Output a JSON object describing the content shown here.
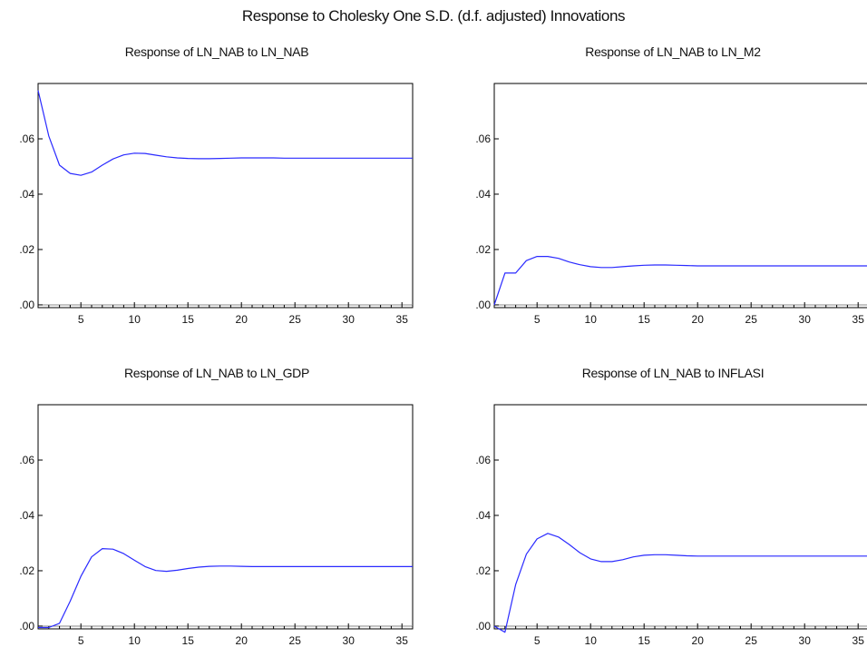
{
  "figure": {
    "title": "Response to Cholesky One S.D. (d.f. adjusted) Innovations"
  },
  "chart_data": [
    {
      "type": "line",
      "title": "Response of LN_NAB to LN_NAB",
      "xlabel": "",
      "ylabel": "",
      "xlim": [
        1,
        36
      ],
      "ylim": [
        -0.001,
        0.08
      ],
      "x_ticks": [
        5,
        10,
        15,
        20,
        25,
        30,
        35
      ],
      "x_tick_labels": [
        "5",
        "10",
        "15",
        "20",
        "25",
        "30",
        "35"
      ],
      "y_ticks": [
        0.0,
        0.02,
        0.04,
        0.06
      ],
      "y_tick_labels": [
        ".00",
        ".02",
        ".04",
        ".06"
      ],
      "grid": false,
      "series": [
        {
          "color": "#2a2aff",
          "x": [
            1,
            2,
            3,
            4,
            5,
            6,
            7,
            8,
            9,
            10,
            11,
            12,
            13,
            14,
            15,
            16,
            17,
            18,
            19,
            20,
            21,
            22,
            23,
            24,
            25,
            26,
            27,
            28,
            29,
            30,
            31,
            32,
            33,
            34,
            35,
            36
          ],
          "values": [
            0.0775,
            0.061,
            0.0505,
            0.0475,
            0.0468,
            0.048,
            0.0505,
            0.0527,
            0.0542,
            0.0548,
            0.0547,
            0.0541,
            0.0535,
            0.0531,
            0.0529,
            0.0528,
            0.0528,
            0.0529,
            0.053,
            0.0531,
            0.0531,
            0.0531,
            0.0531,
            0.053,
            0.053,
            0.053,
            0.053,
            0.053,
            0.053,
            0.053,
            0.053,
            0.053,
            0.053,
            0.053,
            0.053,
            0.053
          ]
        }
      ]
    },
    {
      "type": "line",
      "title": "Response of LN_NAB to LN_M2",
      "xlabel": "",
      "ylabel": "",
      "xlim": [
        1,
        36
      ],
      "ylim": [
        -0.001,
        0.08
      ],
      "x_ticks": [
        5,
        10,
        15,
        20,
        25,
        30,
        35
      ],
      "x_tick_labels": [
        "5",
        "10",
        "15",
        "20",
        "25",
        "30",
        "35"
      ],
      "y_ticks": [
        0.0,
        0.02,
        0.04,
        0.06
      ],
      "y_tick_labels": [
        ".00",
        ".02",
        ".04",
        ".06"
      ],
      "grid": false,
      "series": [
        {
          "color": "#2a2aff",
          "x": [
            1,
            2,
            3,
            4,
            5,
            6,
            7,
            8,
            9,
            10,
            11,
            12,
            13,
            14,
            15,
            16,
            17,
            18,
            19,
            20,
            21,
            22,
            23,
            24,
            25,
            26,
            27,
            28,
            29,
            30,
            31,
            32,
            33,
            34,
            35,
            36
          ],
          "values": [
            0.0,
            0.0115,
            0.0115,
            0.016,
            0.0175,
            0.0175,
            0.0168,
            0.0155,
            0.0145,
            0.0138,
            0.0135,
            0.0135,
            0.0138,
            0.0141,
            0.0143,
            0.0144,
            0.0144,
            0.0143,
            0.0142,
            0.0141,
            0.0141,
            0.0141,
            0.0141,
            0.0141,
            0.0141,
            0.0141,
            0.0141,
            0.0141,
            0.0141,
            0.0141,
            0.0141,
            0.0141,
            0.0141,
            0.0141,
            0.0141,
            0.0141
          ]
        }
      ]
    },
    {
      "type": "line",
      "title": "Response of LN_NAB to LN_GDP",
      "xlabel": "",
      "ylabel": "",
      "xlim": [
        1,
        36
      ],
      "ylim": [
        -0.001,
        0.08
      ],
      "x_ticks": [
        5,
        10,
        15,
        20,
        25,
        30,
        35
      ],
      "x_tick_labels": [
        "5",
        "10",
        "15",
        "20",
        "25",
        "30",
        "35"
      ],
      "y_ticks": [
        0.0,
        0.02,
        0.04,
        0.06
      ],
      "y_tick_labels": [
        ".00",
        ".02",
        ".04",
        ".06"
      ],
      "grid": false,
      "series": [
        {
          "color": "#2a2aff",
          "x": [
            1,
            2,
            3,
            4,
            5,
            6,
            7,
            8,
            9,
            10,
            11,
            12,
            13,
            14,
            15,
            16,
            17,
            18,
            19,
            20,
            21,
            22,
            23,
            24,
            25,
            26,
            27,
            28,
            29,
            30,
            31,
            32,
            33,
            34,
            35,
            36
          ],
          "values": [
            -0.0005,
            -0.0005,
            0.001,
            0.009,
            0.018,
            0.025,
            0.028,
            0.0278,
            0.0262,
            0.0238,
            0.0215,
            0.0201,
            0.0198,
            0.0202,
            0.0208,
            0.0213,
            0.0216,
            0.0217,
            0.0217,
            0.0216,
            0.0215,
            0.0215,
            0.0215,
            0.0215,
            0.0215,
            0.0215,
            0.0215,
            0.0215,
            0.0215,
            0.0215,
            0.0215,
            0.0215,
            0.0215,
            0.0215,
            0.0215,
            0.0215
          ]
        }
      ]
    },
    {
      "type": "line",
      "title": "Response of LN_NAB to INFLASI",
      "xlabel": "",
      "ylabel": "",
      "xlim": [
        1,
        36
      ],
      "ylim": [
        -0.001,
        0.08
      ],
      "x_ticks": [
        5,
        10,
        15,
        20,
        25,
        30,
        35
      ],
      "x_tick_labels": [
        "5",
        "10",
        "15",
        "20",
        "25",
        "30",
        "35"
      ],
      "y_ticks": [
        0.0,
        0.02,
        0.04,
        0.06
      ],
      "y_tick_labels": [
        ".00",
        ".02",
        ".04",
        ".06"
      ],
      "grid": false,
      "series": [
        {
          "color": "#2a2aff",
          "x": [
            1,
            2,
            3,
            4,
            5,
            6,
            7,
            8,
            9,
            10,
            11,
            12,
            13,
            14,
            15,
            16,
            17,
            18,
            19,
            20,
            21,
            22,
            23,
            24,
            25,
            26,
            27,
            28,
            29,
            30,
            31,
            32,
            33,
            34,
            35,
            36
          ],
          "values": [
            0.0,
            -0.0022,
            0.015,
            0.026,
            0.0315,
            0.0335,
            0.0322,
            0.0295,
            0.0265,
            0.0243,
            0.0233,
            0.0233,
            0.024,
            0.025,
            0.0256,
            0.0258,
            0.0258,
            0.0256,
            0.0254,
            0.0253,
            0.0253,
            0.0253,
            0.0253,
            0.0253,
            0.0253,
            0.0253,
            0.0253,
            0.0253,
            0.0253,
            0.0253,
            0.0253,
            0.0253,
            0.0253,
            0.0253,
            0.0253,
            0.0253
          ]
        }
      ]
    }
  ]
}
